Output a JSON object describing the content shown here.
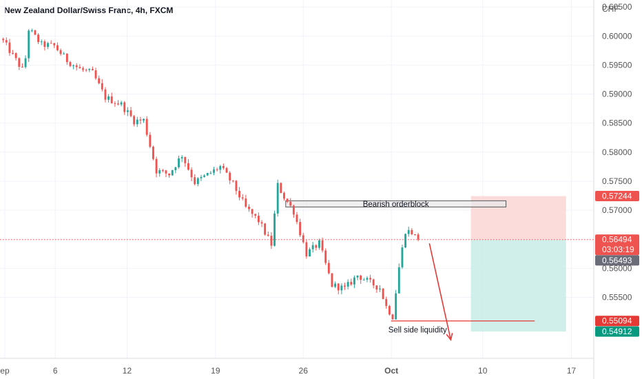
{
  "header": {
    "title": "New Zealand Dollar/Swiss Franc, 4h, FXCM"
  },
  "colors": {
    "up": "#26a69a",
    "down": "#ef5350",
    "grid": "#f0f3fa",
    "axis_text": "#555555",
    "current_price_line": "#ef5350",
    "stop_zone": "#fbd5d5",
    "target_zone": "#c8ebe6",
    "orderblock_fill": "#e8e8e8",
    "orderblock_border": "#555555",
    "arrow": "#e53935",
    "liquidity_line": "#e53935"
  },
  "chart_data": {
    "type": "candlestick",
    "currency_label": "CHF",
    "ylim": [
      0.5445,
      0.6062
    ],
    "y_ticks": [
      "0.60500",
      "0.60000",
      "0.59500",
      "0.59000",
      "0.58500",
      "0.58000",
      "0.57500",
      "0.57000",
      "0.56500",
      "0.56000",
      "0.55500"
    ],
    "x_tick_labels": [
      {
        "label": "ep",
        "t": 0.5
      },
      {
        "label": "6",
        "t": 16.3
      },
      {
        "label": "12",
        "t": 38.8
      },
      {
        "label": "19",
        "t": 66.5
      },
      {
        "label": "26",
        "t": 94.0
      },
      {
        "label": "Oct",
        "t": 121.6,
        "bold": true
      },
      {
        "label": "10",
        "t": 150.2
      },
      {
        "label": "17",
        "t": 178.0
      }
    ],
    "bar_count": 133,
    "waypoints": [
      [
        0,
        0.5991
      ],
      [
        6,
        0.5942
      ],
      [
        7,
        0.5962
      ],
      [
        8,
        0.6012
      ],
      [
        12,
        0.5985
      ],
      [
        16,
        0.5983
      ],
      [
        20,
        0.5958
      ],
      [
        24,
        0.5943
      ],
      [
        28,
        0.5936
      ],
      [
        32,
        0.5894
      ],
      [
        37,
        0.5882
      ],
      [
        41,
        0.5854
      ],
      [
        44,
        0.5855
      ],
      [
        48,
        0.5768
      ],
      [
        52,
        0.5762
      ],
      [
        56,
        0.5795
      ],
      [
        60,
        0.5748
      ],
      [
        64,
        0.5761
      ],
      [
        68,
        0.5775
      ],
      [
        72,
        0.5745
      ],
      [
        76,
        0.5704
      ],
      [
        80,
        0.5682
      ],
      [
        84,
        0.5641
      ],
      [
        86,
        0.5743
      ],
      [
        88,
        0.5723
      ],
      [
        91,
        0.5698
      ],
      [
        95,
        0.5625
      ],
      [
        99,
        0.5643
      ],
      [
        103,
        0.5571
      ],
      [
        107,
        0.5565
      ],
      [
        111,
        0.5588
      ],
      [
        115,
        0.5575
      ],
      [
        118,
        0.5566
      ],
      [
        120,
        0.5534
      ],
      [
        122,
        0.5517
      ],
      [
        124,
        0.5602
      ],
      [
        126,
        0.5665
      ],
      [
        128,
        0.5662
      ],
      [
        130,
        0.5648
      ]
    ],
    "last_price": 0.56494,
    "annotations": {
      "orderblock": {
        "label": "Bearish orderblock",
        "t0": 88.5,
        "t1": 157.5,
        "top": 0.57163,
        "bottom": 0.57056
      },
      "liquidity": {
        "label": "Sell side liquidity",
        "t0": 121.5,
        "t1": 166.5,
        "price": 0.55094
      },
      "position": {
        "t0": 146.5,
        "t1": 176.3,
        "stop": 0.57244,
        "entry": 0.56493,
        "target": 0.54912
      },
      "arrow": {
        "from_t": 133.5,
        "from_price": 0.5643,
        "to_t": 140.2,
        "to_price": 0.5477
      }
    },
    "price_tags": [
      {
        "label": "0.57244",
        "price": 0.57244,
        "color": "#ef5350"
      },
      {
        "label": "0.56494",
        "price": 0.56494,
        "color": "#ef5350",
        "sub": "03:03:19"
      },
      {
        "label": "0.56493",
        "price": 0.56493,
        "color": "#6a6d78",
        "offset_rows": 1
      },
      {
        "label": "0.55094",
        "price": 0.55094,
        "color": "#e53935"
      },
      {
        "label": "0.54912",
        "price": 0.54912,
        "color": "#089981"
      }
    ]
  }
}
